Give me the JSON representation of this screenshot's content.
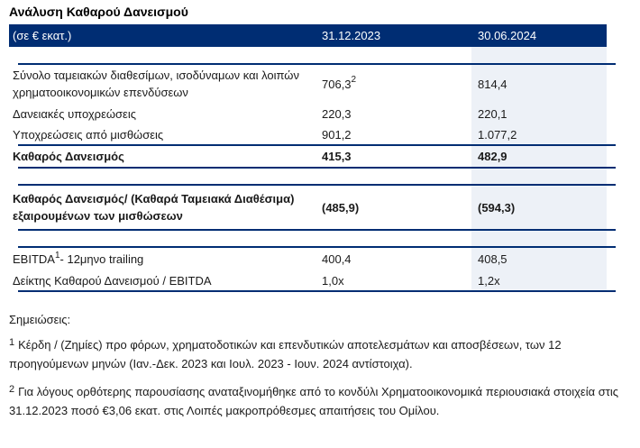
{
  "title": "Ανάλυση Καθαρού Δανεισμού",
  "colors": {
    "header_bg": "#002d73",
    "divider_line": "#002d73",
    "highlight_column_bg": "#edf1f7"
  },
  "table": {
    "header": {
      "unit": "(σε € εκατ.)",
      "col_2023": "31.12.2023",
      "col_2024": "30.06.2024"
    },
    "rows": [
      {
        "label": "Σύνολο ταμειακών διαθεσίμων, ισοδύναμων και λοιπών χρηματοοικονομικών επενδύσεων",
        "v1": "706,3",
        "v1_sup": "2",
        "v2": "814,4"
      },
      {
        "label": "Δανειακές υποχρεώσεις",
        "v1": "220,3",
        "v2": "220,1"
      },
      {
        "label": "Υποχρεώσεις από μισθώσεις",
        "v1": "901,2",
        "v2": "1.077,2"
      },
      {
        "label": "Καθαρός Δανεισμός",
        "v1": "415,3",
        "v2": "482,9"
      },
      {
        "label": "Καθαρός Δανεισμός/ (Καθαρά Ταμειακά Διαθέσιμα) εξαιρουμένων των μισθώσεων",
        "v1": "(485,9)",
        "v2": "(594,3)"
      },
      {
        "label": "EBITDA",
        "label_sup": "1",
        "label_post": " - 12μηνο trailing",
        "v1": "400,4",
        "v2": "408,5"
      },
      {
        "label": "Δείκτης Καθαρού Δανεισμού / EBITDA",
        "v1": "1,0x",
        "v2": "1,2x"
      }
    ]
  },
  "notes": {
    "heading": "Σημειώσεις:",
    "items": [
      {
        "sup": "1",
        "text": "Κέρδη / (Ζημίες) προ φόρων, χρηματοδοτικών και επενδυτικών αποτελεσμάτων και αποσβέσεων, των 12 προηγούμενων μηνών (Ιαν.-Δεκ. 2023 και Ιουλ. 2023 - Ιουν. 2024 αντίστοιχα)."
      },
      {
        "sup": "2",
        "text": "Για λόγους ορθότερης παρουσίασης αναταξινομήθηκε από το κονδύλι Χρηματοοικονομικά περιουσιακά στοιχεία στις 31.12.2023 ποσό €3,06 εκατ. στις Λοιπές μακροπρόθεσμες απαιτήσεις του Ομίλου."
      }
    ]
  }
}
